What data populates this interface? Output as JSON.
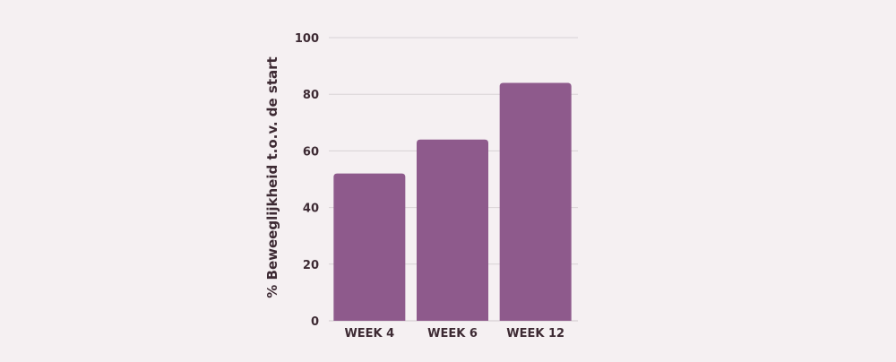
{
  "chart_data": {
    "type": "bar",
    "title": "",
    "xlabel": "",
    "ylabel": "% Beweeglijkheid t.o.v. de start",
    "categories": [
      "WEEK 4",
      "WEEK 6",
      "WEEK 12"
    ],
    "values": [
      52,
      64,
      84
    ],
    "ylim": [
      0,
      100
    ],
    "yticks": [
      "0",
      "20",
      "40",
      "60",
      "80",
      "100"
    ],
    "grid": true,
    "legend": "none",
    "bar_color": "#8e5a8c"
  }
}
